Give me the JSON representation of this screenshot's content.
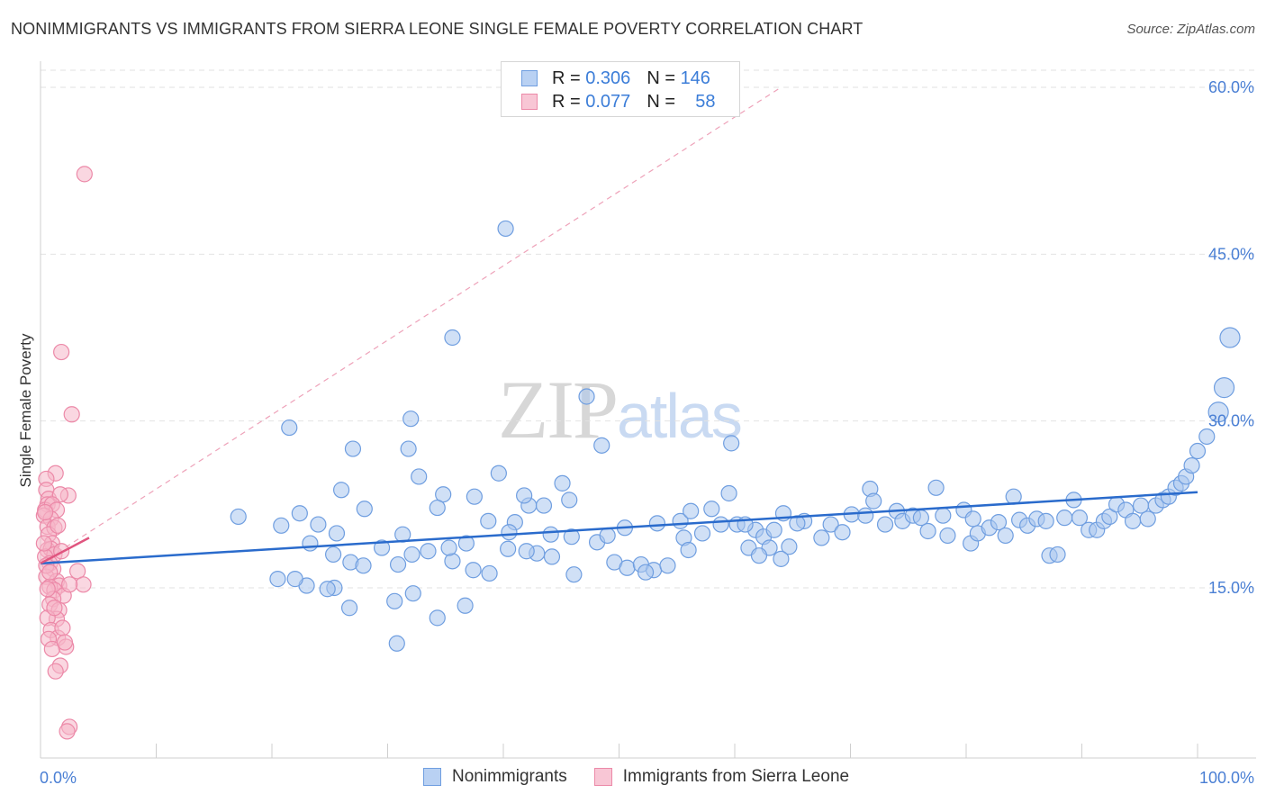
{
  "title": "NONIMMIGRANTS VS IMMIGRANTS FROM SIERRA LEONE SINGLE FEMALE POVERTY CORRELATION CHART",
  "source": "Source: ZipAtlas.com",
  "watermark": {
    "zip": "ZIP",
    "atlas": "atlas"
  },
  "legend": {
    "rows": [
      {
        "r_label": "R =",
        "r_value": "0.306",
        "n_label": "N =",
        "n_value": "146"
      },
      {
        "r_label": "R =",
        "r_value": "0.077",
        "n_label": "N =",
        "n_value": "58"
      }
    ],
    "bottom": [
      "Nonimmigrants",
      "Immigrants from Sierra Leone"
    ]
  },
  "colors": {
    "blue_fill": "#a9c6ef",
    "blue_stroke": "#6f9ee0",
    "blue_line": "#2a6bcc",
    "pink_fill": "#f5b7c9",
    "pink_stroke": "#ec89a8",
    "pink_line": "#e0557f",
    "grid": "#e2e2e2",
    "axis_text": "#4a7fd4"
  },
  "chart_data": {
    "type": "scatter",
    "title": "NONIMMIGRANTS VS IMMIGRANTS FROM SIERRA LEONE SINGLE FEMALE POVERTY CORRELATION CHART",
    "xlabel": "",
    "ylabel": "Single Female Poverty",
    "xlim": [
      0,
      100
    ],
    "ylim": [
      0,
      63
    ],
    "x_tick_labels": [
      "0.0%",
      "100.0%"
    ],
    "y_ticks": [
      15,
      30,
      45,
      60
    ],
    "y_tick_labels": [
      "15.0%",
      "30.0%",
      "45.0%",
      "60.0%"
    ],
    "grid": true,
    "legend_position": "top-center",
    "series": [
      {
        "name": "Nonimmigrants",
        "color": "blue",
        "trend": {
          "x": [
            0,
            100
          ],
          "y": [
            17.2,
            23.6
          ]
        },
        "points": [
          [
            40.2,
            47.3
          ],
          [
            35.6,
            37.5
          ],
          [
            32.0,
            30.2
          ],
          [
            47.2,
            32.2
          ],
          [
            21.5,
            29.4
          ],
          [
            27.0,
            27.5
          ],
          [
            31.8,
            27.5
          ],
          [
            39.6,
            25.3
          ],
          [
            45.1,
            24.4
          ],
          [
            34.8,
            23.4
          ],
          [
            26.0,
            23.8
          ],
          [
            28.0,
            22.1
          ],
          [
            22.4,
            21.7
          ],
          [
            42.2,
            22.4
          ],
          [
            38.7,
            21.0
          ],
          [
            41.0,
            20.9
          ],
          [
            20.8,
            20.6
          ],
          [
            17.1,
            21.4
          ],
          [
            25.3,
            18.0
          ],
          [
            23.3,
            19.0
          ],
          [
            26.8,
            17.3
          ],
          [
            27.9,
            17.0
          ],
          [
            31.3,
            19.8
          ],
          [
            33.5,
            18.3
          ],
          [
            35.6,
            17.4
          ],
          [
            37.4,
            16.6
          ],
          [
            36.8,
            19.0
          ],
          [
            35.3,
            18.6
          ],
          [
            32.1,
            18.0
          ],
          [
            29.5,
            18.6
          ],
          [
            30.9,
            17.1
          ],
          [
            38.8,
            16.3
          ],
          [
            40.5,
            20.0
          ],
          [
            42.9,
            18.1
          ],
          [
            44.1,
            19.8
          ],
          [
            46.1,
            16.2
          ],
          [
            45.9,
            19.6
          ],
          [
            48.1,
            19.1
          ],
          [
            49.0,
            19.7
          ],
          [
            50.5,
            20.4
          ],
          [
            49.6,
            17.3
          ],
          [
            50.7,
            16.8
          ],
          [
            51.9,
            17.1
          ],
          [
            53.0,
            16.6
          ],
          [
            53.3,
            20.8
          ],
          [
            54.2,
            17.0
          ],
          [
            55.3,
            21.0
          ],
          [
            56.2,
            21.9
          ],
          [
            55.6,
            19.5
          ],
          [
            57.2,
            19.9
          ],
          [
            58.0,
            22.1
          ],
          [
            58.8,
            20.7
          ],
          [
            59.5,
            23.5
          ],
          [
            60.2,
            20.7
          ],
          [
            61.2,
            18.6
          ],
          [
            61.8,
            20.2
          ],
          [
            60.9,
            20.7
          ],
          [
            62.5,
            19.6
          ],
          [
            63.4,
            20.2
          ],
          [
            64.2,
            21.7
          ],
          [
            64.7,
            18.7
          ],
          [
            64.0,
            17.6
          ],
          [
            66.0,
            21.0
          ],
          [
            63.0,
            18.6
          ],
          [
            62.1,
            17.9
          ],
          [
            65.4,
            20.8
          ],
          [
            67.5,
            19.5
          ],
          [
            68.3,
            20.7
          ],
          [
            69.3,
            20.0
          ],
          [
            70.1,
            21.6
          ],
          [
            71.3,
            21.5
          ],
          [
            71.7,
            23.9
          ],
          [
            72.0,
            22.8
          ],
          [
            73.0,
            20.7
          ],
          [
            74.0,
            21.9
          ],
          [
            74.5,
            21.0
          ],
          [
            75.4,
            21.5
          ],
          [
            76.1,
            21.3
          ],
          [
            76.7,
            20.1
          ],
          [
            77.4,
            24.0
          ],
          [
            78.0,
            21.5
          ],
          [
            78.4,
            19.7
          ],
          [
            79.8,
            22.0
          ],
          [
            80.4,
            19.0
          ],
          [
            80.6,
            21.2
          ],
          [
            81.0,
            19.9
          ],
          [
            82.0,
            20.4
          ],
          [
            82.8,
            20.9
          ],
          [
            83.4,
            19.7
          ],
          [
            84.1,
            23.2
          ],
          [
            84.6,
            21.1
          ],
          [
            85.3,
            20.6
          ],
          [
            86.1,
            21.2
          ],
          [
            86.9,
            21.0
          ],
          [
            87.2,
            17.9
          ],
          [
            87.9,
            18.0
          ],
          [
            88.5,
            21.3
          ],
          [
            89.3,
            22.9
          ],
          [
            89.8,
            21.3
          ],
          [
            90.6,
            20.2
          ],
          [
            91.3,
            20.2
          ],
          [
            91.9,
            21.0
          ],
          [
            92.4,
            21.4
          ],
          [
            93.0,
            22.5
          ],
          [
            93.8,
            22.0
          ],
          [
            94.4,
            21.0
          ],
          [
            95.1,
            22.4
          ],
          [
            95.7,
            21.2
          ],
          [
            96.4,
            22.4
          ],
          [
            97.0,
            22.9
          ],
          [
            97.5,
            23.2
          ],
          [
            98.1,
            24.0
          ],
          [
            98.6,
            24.4
          ],
          [
            99.0,
            25.0
          ],
          [
            99.5,
            26.0
          ],
          [
            100.0,
            27.3
          ],
          [
            100.8,
            28.6
          ],
          [
            101.8,
            30.8
          ],
          [
            102.3,
            33.0
          ],
          [
            102.8,
            37.5
          ],
          [
            59.7,
            28.0
          ],
          [
            48.5,
            27.8
          ],
          [
            32.7,
            25.0
          ],
          [
            34.3,
            22.2
          ],
          [
            37.5,
            23.2
          ],
          [
            41.8,
            23.3
          ],
          [
            43.5,
            22.4
          ],
          [
            45.7,
            22.9
          ],
          [
            44.2,
            17.8
          ],
          [
            40.4,
            18.5
          ],
          [
            42.0,
            18.3
          ],
          [
            25.6,
            19.9
          ],
          [
            24.0,
            20.7
          ],
          [
            36.7,
            13.4
          ],
          [
            34.3,
            12.3
          ],
          [
            30.8,
            10.0
          ],
          [
            32.2,
            14.5
          ],
          [
            30.6,
            13.8
          ],
          [
            26.7,
            13.2
          ],
          [
            25.4,
            15.0
          ],
          [
            23.0,
            15.2
          ],
          [
            24.8,
            14.9
          ],
          [
            20.5,
            15.8
          ],
          [
            22.0,
            15.8
          ],
          [
            52.3,
            16.4
          ],
          [
            56.0,
            18.4
          ]
        ]
      },
      {
        "name": "Immigrants from Sierra Leone",
        "color": "pink",
        "trend": {
          "x": [
            0,
            4.2
          ],
          "y": [
            17.2,
            19.5
          ]
        },
        "trend_dashed": {
          "x": [
            0,
            64
          ],
          "y": [
            17.2,
            60
          ]
        },
        "points": [
          [
            3.8,
            52.2
          ],
          [
            1.8,
            36.2
          ],
          [
            2.7,
            30.6
          ],
          [
            1.3,
            25.3
          ],
          [
            0.5,
            24.8
          ],
          [
            0.5,
            23.8
          ],
          [
            0.7,
            23.0
          ],
          [
            0.6,
            22.5
          ],
          [
            2.4,
            23.3
          ],
          [
            1.7,
            23.4
          ],
          [
            0.4,
            22.0
          ],
          [
            1.0,
            22.5
          ],
          [
            1.4,
            22.0
          ],
          [
            0.3,
            21.5
          ],
          [
            0.9,
            21.2
          ],
          [
            0.6,
            20.5
          ],
          [
            1.2,
            20.4
          ],
          [
            0.7,
            19.8
          ],
          [
            1.0,
            19.0
          ],
          [
            0.6,
            18.4
          ],
          [
            0.9,
            18.5
          ],
          [
            1.2,
            18.0
          ],
          [
            0.4,
            17.8
          ],
          [
            0.8,
            17.2
          ],
          [
            1.1,
            16.7
          ],
          [
            0.5,
            16.0
          ],
          [
            1.4,
            15.6
          ],
          [
            1.6,
            15.2
          ],
          [
            0.8,
            15.1
          ],
          [
            1.2,
            14.8
          ],
          [
            2.0,
            14.3
          ],
          [
            1.1,
            14.0
          ],
          [
            3.2,
            16.5
          ],
          [
            3.7,
            15.3
          ],
          [
            2.5,
            15.3
          ],
          [
            0.8,
            13.5
          ],
          [
            1.6,
            13.0
          ],
          [
            1.4,
            12.2
          ],
          [
            0.6,
            12.3
          ],
          [
            0.9,
            11.2
          ],
          [
            1.5,
            10.5
          ],
          [
            0.7,
            10.4
          ],
          [
            2.2,
            9.7
          ],
          [
            1.0,
            9.5
          ],
          [
            1.7,
            8.0
          ],
          [
            1.3,
            7.5
          ],
          [
            2.5,
            2.5
          ],
          [
            2.3,
            2.1
          ],
          [
            0.5,
            17.0
          ],
          [
            0.3,
            19.0
          ],
          [
            1.8,
            18.3
          ],
          [
            0.6,
            14.9
          ],
          [
            1.9,
            11.4
          ],
          [
            0.4,
            21.8
          ],
          [
            1.5,
            20.6
          ],
          [
            0.8,
            16.4
          ],
          [
            1.2,
            13.2
          ],
          [
            2.1,
            10.1
          ]
        ]
      }
    ]
  }
}
